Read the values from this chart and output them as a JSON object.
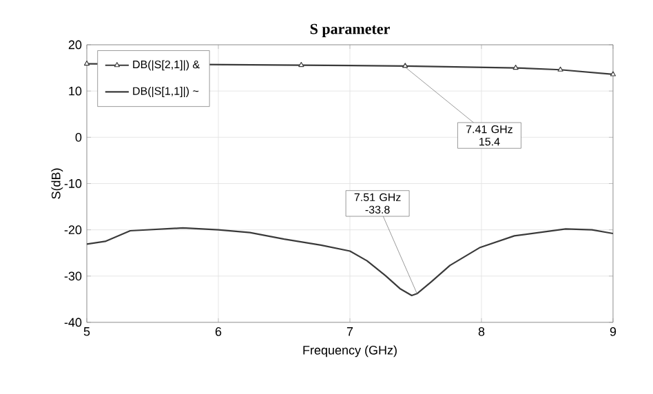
{
  "chart_data": {
    "type": "line",
    "title": "S parameter",
    "xlabel": "Frequency (GHz)",
    "ylabel": "S(dB)",
    "xlim": [
      5,
      9
    ],
    "ylim": [
      -40,
      20
    ],
    "xticks": [
      5,
      6,
      7,
      8,
      9
    ],
    "yticks": [
      -40,
      -30,
      -20,
      -10,
      0,
      10,
      20
    ],
    "grid": true,
    "legend": "top left",
    "series": [
      {
        "name": "DB(|S[2,1]|) &",
        "color": "#3a3a3a",
        "marker": "triangle",
        "x": [
          5,
          6.63,
          7.42,
          8.26,
          8.6,
          9
        ],
        "values": [
          15.9,
          15.6,
          15.4,
          15.0,
          14.6,
          13.6
        ]
      },
      {
        "name": "DB(|S[1,1]|) ~",
        "color": "#3a3a3a",
        "marker": "none",
        "x": [
          5,
          5.14,
          5.33,
          5.73,
          6.0,
          6.24,
          6.5,
          6.78,
          7.0,
          7.13,
          7.27,
          7.38,
          7.47,
          7.51,
          7.62,
          7.76,
          7.99,
          8.25,
          8.64,
          8.84,
          9
        ],
        "values": [
          -23.1,
          -22.5,
          -20.2,
          -19.6,
          -20,
          -20.6,
          -22,
          -23.3,
          -24.6,
          -26.7,
          -29.9,
          -32.7,
          -34.2,
          -33.8,
          -31.2,
          -27.7,
          -23.8,
          -21.3,
          -19.8,
          -20,
          -20.8
        ]
      }
    ],
    "annotations": [
      {
        "text": "7.41 GHz 15.4",
        "x": 7.41,
        "y": 15.4
      },
      {
        "text": "7.51 GHz -33.8",
        "x": 7.51,
        "y": -33.8
      }
    ]
  }
}
